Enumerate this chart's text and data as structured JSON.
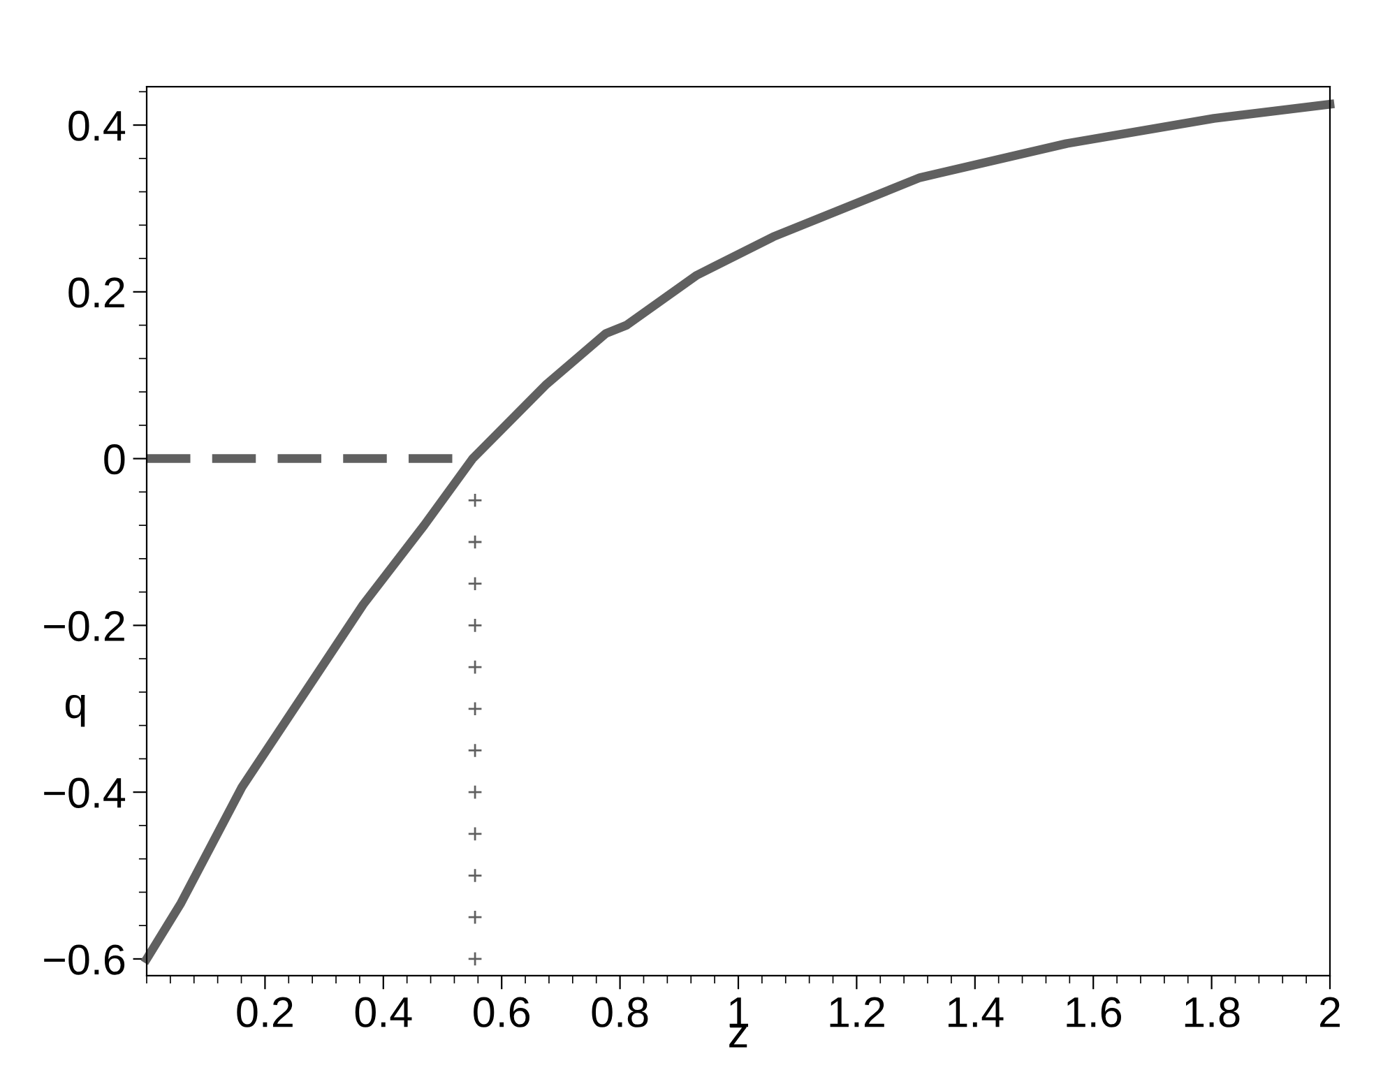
{
  "chart_data": {
    "type": "line",
    "xlabel": "z",
    "ylabel": "q",
    "xlim": [
      0,
      2
    ],
    "ylim": [
      -0.62,
      0.446
    ],
    "xticks": [
      0.2,
      0.4,
      0.6,
      0.8,
      1,
      1.2,
      1.4,
      1.6,
      1.8,
      2
    ],
    "yticks": [
      {
        "value": -0.6,
        "label": "−0.6"
      },
      {
        "value": -0.4,
        "label": "−0.4"
      },
      {
        "value": -0.2,
        "label": "−0.2"
      },
      0,
      0.2,
      0.4
    ],
    "grid": false,
    "legend": false,
    "series": [
      {
        "color": "#606060",
        "line_style": "solid",
        "x": [
          0,
          0.058,
          0.161,
          0.264,
          0.366,
          0.469,
          0.551,
          0.674,
          0.776,
          0.811,
          0.93,
          1.059,
          1.307,
          1.556,
          1.804,
          2
        ],
        "values": [
          -0.6,
          -0.533,
          -0.394,
          -0.284,
          -0.175,
          -0.08,
          0,
          0.088,
          0.15,
          0.16,
          0.22,
          0.266,
          0.337,
          0.378,
          0.408,
          0.425
        ]
      },
      {
        "color": "#606060",
        "line_style": "dashed",
        "x": [
          0,
          0.555
        ],
        "values": [
          0,
          0
        ]
      },
      {
        "type": "scatter",
        "color": "#606060",
        "marker": "cross",
        "x": [
          0.555,
          0.555,
          0.555,
          0.555,
          0.555,
          0.555,
          0.555,
          0.555,
          0.555,
          0.555,
          0.555,
          0.555
        ],
        "values": [
          -0.05,
          -0.1,
          -0.15,
          -0.2,
          -0.25,
          -0.3,
          -0.35,
          -0.4,
          -0.45,
          -0.5,
          -0.55,
          -0.6
        ]
      }
    ]
  }
}
